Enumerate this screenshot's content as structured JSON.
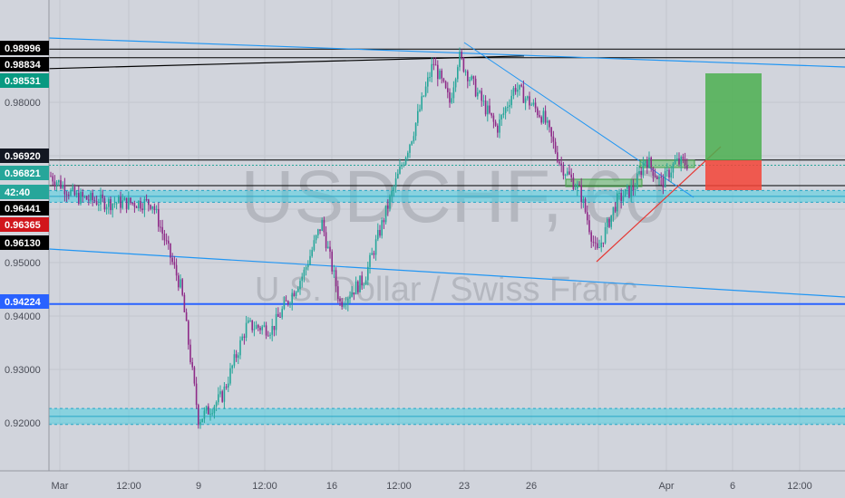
{
  "chart_data": {
    "type": "candlestick",
    "symbol": "USDCHF",
    "interval": "60",
    "description": "U.S. Dollar / Swiss Franc",
    "watermark": "USDCHF, 60",
    "ylim": [
      0.9155,
      0.9931
    ],
    "y_ticks": [
      "0.98000",
      "0.95000",
      "0.94000",
      "0.93000",
      "0.92000"
    ],
    "x_ticks": [
      "Mar",
      "12:00",
      "9",
      "12:00",
      "16",
      "12:00",
      "23",
      "26",
      "Apr",
      "6",
      "12:00"
    ],
    "price_tags": [
      {
        "label": "0.98996",
        "value": 0.98996,
        "bg": "#000000",
        "fg": "#ffffff"
      },
      {
        "label": "0.98834",
        "value": 0.98834,
        "bg": "#000000",
        "fg": "#ffffff"
      },
      {
        "label": "0.98531",
        "value": 0.98531,
        "bg": "#089981",
        "fg": "#ffffff"
      },
      {
        "label": "0.96920",
        "value": 0.9692,
        "bg": "#131722",
        "fg": "#ffffff"
      },
      {
        "label": "0.96821",
        "value": 0.96821,
        "bg": "#26a69a",
        "fg": "#ffffff"
      },
      {
        "label": "42:40",
        "value": 0.9665,
        "bg": "#26a69a",
        "fg": "#ffffff"
      },
      {
        "label": "0.96441",
        "value": 0.96441,
        "bg": "#000000",
        "fg": "#ffffff"
      },
      {
        "label": "0.96365",
        "value": 0.96365,
        "bg": "#d1161c",
        "fg": "#ffffff"
      },
      {
        "label": "0.96130",
        "value": 0.9613,
        "bg": "#000000",
        "fg": "#ffffff"
      },
      {
        "label": "0.94224",
        "value": 0.94224,
        "bg": "#2962ff",
        "fg": "#ffffff"
      }
    ],
    "colors": {
      "up": "#26a69a",
      "down": "#8e2b88",
      "background": "#d1d4dc",
      "trendline": "#2196f3",
      "zone": "#4dd0e1",
      "support": "#2962ff",
      "long_target": "#4caf50",
      "long_stop": "#f44336"
    }
  }
}
